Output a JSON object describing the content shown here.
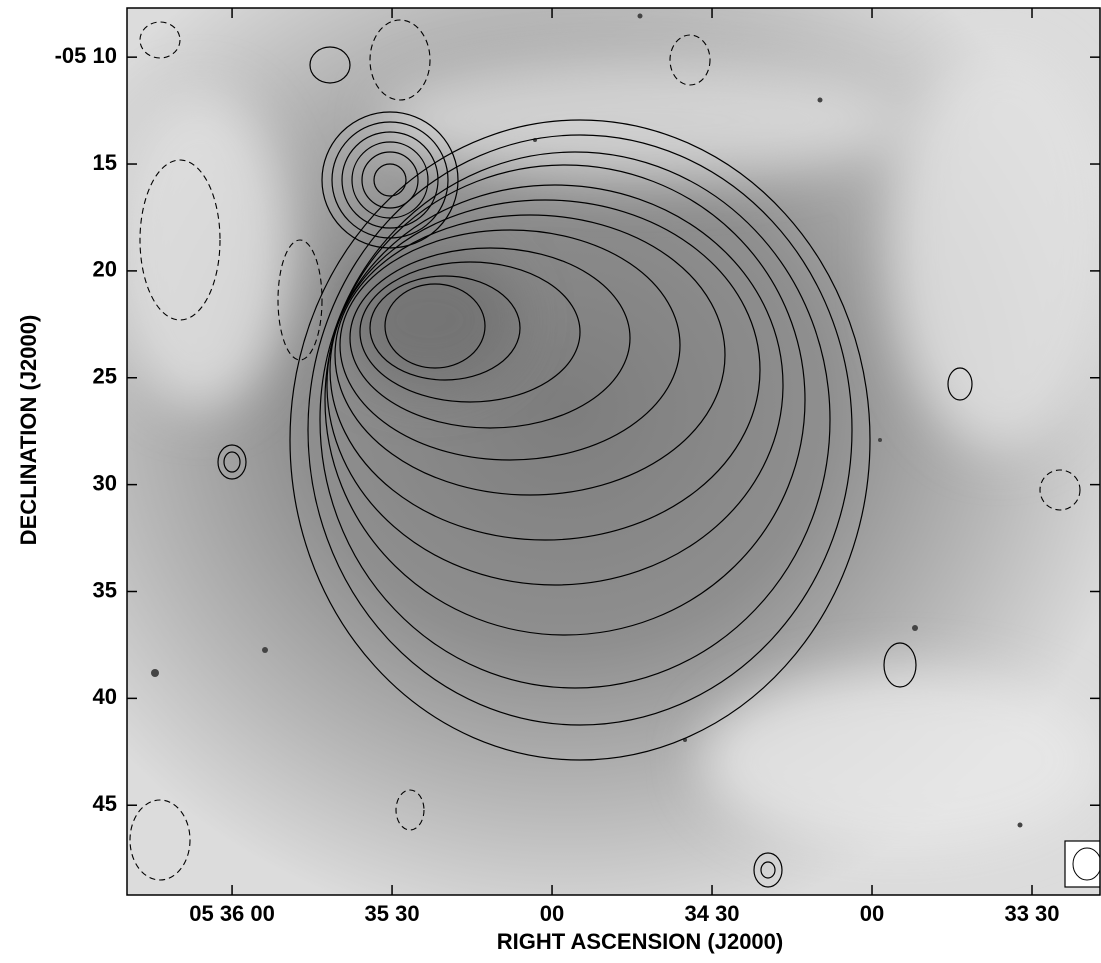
{
  "chart_data": {
    "type": "image",
    "xlabel": "RIGHT ASCENSION (J2000)",
    "ylabel": "DECLINATION (J2000)",
    "xlim": [
      2179.7,
      1997.25
    ],
    "xticks": [
      {
        "value": 2160,
        "label": "05 36 00"
      },
      {
        "value": 2130,
        "label": "35 30"
      },
      {
        "value": 2100,
        "label": "00"
      },
      {
        "value": 2070,
        "label": "34 30"
      },
      {
        "value": 2040,
        "label": "00"
      },
      {
        "value": 2010,
        "label": "33 30"
      }
    ],
    "ylim": [
      7.7,
      49.2
    ],
    "yticks": [
      {
        "value": 10,
        "label": "-05 10"
      },
      15,
      20,
      25,
      30,
      35,
      40,
      45
    ]
  }
}
